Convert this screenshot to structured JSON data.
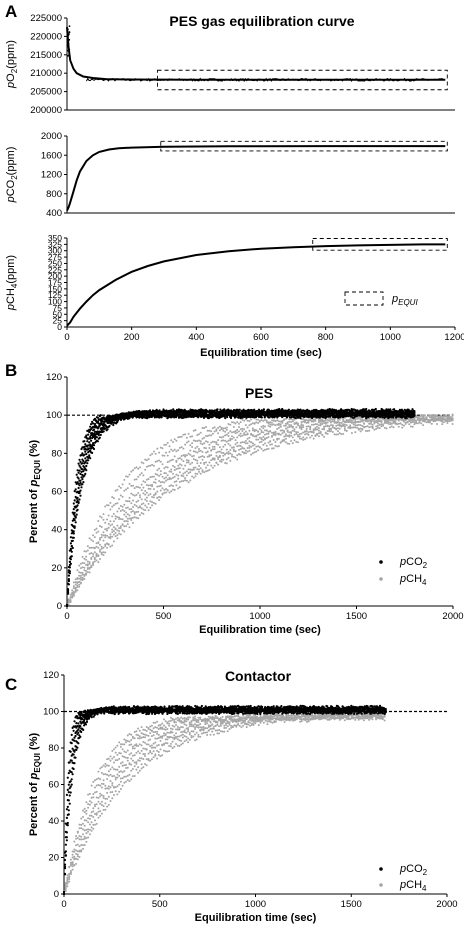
{
  "chart_data": [
    {
      "panel": "A",
      "title": "PES gas equilibration curve",
      "type": "line",
      "xlabel": "Equilibration time (sec)",
      "xlim": [
        0,
        1200
      ],
      "xticks": [
        "0",
        "200",
        "400",
        "600",
        "800",
        "1000",
        "1200"
      ],
      "legend": "p_EQUI",
      "legend_label": "p",
      "legend_sub": "EQUI",
      "subplots": [
        {
          "ylabel_pre": "pO",
          "ylabel_sub": "2",
          "ylabel_post": "(ppm)",
          "ylim": [
            200000,
            225000
          ],
          "yticks": [
            "200000",
            "205000",
            "210000",
            "215000",
            "220000",
            "225000"
          ],
          "series": [
            {
              "x": [
                0,
                5,
                10,
                20,
                30,
                50,
                80,
                120,
                200,
                400,
                600,
                800,
                1000,
                1170
              ],
              "y": [
                222500,
                217000,
                213500,
                211200,
                210000,
                209100,
                208700,
                208400,
                208300,
                208200,
                208200,
                208200,
                208200,
                208200
              ]
            }
          ],
          "equi_box": {
            "x": [
              280,
              1170
            ],
            "y": [
              205500,
              210800
            ]
          }
        },
        {
          "ylabel_pre": "pCO",
          "ylabel_sub": "2",
          "ylabel_post": "(ppm)",
          "ylim": [
            400,
            2000
          ],
          "yticks": [
            "400",
            "800",
            "1200",
            "1600",
            "2000"
          ],
          "series": [
            {
              "x": [
                0,
                5,
                10,
                20,
                30,
                40,
                60,
                80,
                100,
                130,
                160,
                200,
                300,
                500,
                800,
                1000,
                1170
              ],
              "y": [
                450,
                520,
                620,
                850,
                1080,
                1260,
                1480,
                1600,
                1670,
                1720,
                1745,
                1760,
                1775,
                1785,
                1790,
                1790,
                1790
              ]
            }
          ],
          "equi_box": {
            "x": [
              290,
              1170
            ],
            "y": [
              1690,
              1890
            ]
          }
        },
        {
          "ylabel_pre": "pCH",
          "ylabel_sub": "4",
          "ylabel_post": "(ppm)",
          "ylim": [
            0,
            350
          ],
          "yticks": [
            "0",
            "25",
            "50",
            "75",
            "100",
            "125",
            "150",
            "175",
            "200",
            "225",
            "250",
            "275",
            "300",
            "325",
            "350"
          ],
          "series": [
            {
              "x": [
                0,
                10,
                20,
                40,
                60,
                80,
                100,
                150,
                200,
                250,
                300,
                400,
                500,
                600,
                700,
                800,
                900,
                1000,
                1100,
                1170
              ],
              "y": [
                5,
                18,
                40,
                72,
                100,
                125,
                145,
                185,
                217,
                240,
                258,
                283,
                298,
                308,
                314,
                318,
                321,
                323,
                325,
                325
              ]
            }
          ],
          "equi_box": {
            "x": [
              760,
              1170
            ],
            "y": [
              302,
              348
            ]
          }
        }
      ]
    },
    {
      "panel": "B",
      "title": "PES",
      "type": "scatter",
      "xlabel": "Equilibration time (sec)",
      "ylabel_pre": "Percent of ",
      "ylabel_p": "p",
      "ylabel_sub": "EQUI",
      "ylabel_post": " (%)",
      "xlim": [
        0,
        2000
      ],
      "ylim": [
        0,
        120
      ],
      "xticks": [
        "0",
        "500",
        "1000",
        "1500",
        "2000"
      ],
      "yticks": [
        "0",
        "20",
        "40",
        "60",
        "80",
        "100",
        "120"
      ],
      "reference_line": 100,
      "legend_position": "bottom-right",
      "series": [
        {
          "legend_label": "pCO",
          "legend_sub": "2",
          "color": "#000000",
          "tau": [
            45,
            50,
            55,
            60,
            65,
            70,
            75,
            80
          ],
          "x_end": 1800,
          "plateau": 101
        },
        {
          "legend_label": "pCH",
          "legend_sub": "4",
          "color": "#a6a6a6",
          "tau": [
            280,
            330,
            380,
            420,
            460,
            500,
            540,
            580
          ],
          "x_end": 2000,
          "plateau": 100
        }
      ]
    },
    {
      "panel": "C",
      "title": "Contactor",
      "type": "scatter",
      "xlabel": "Equilibration time (sec)",
      "ylabel_pre": "Percent of ",
      "ylabel_p": "p",
      "ylabel_sub": "EQUI",
      "ylabel_post": " (%)",
      "xlim": [
        0,
        2000
      ],
      "ylim": [
        0,
        120
      ],
      "xticks": [
        "0",
        "500",
        "1000",
        "1500",
        "2000"
      ],
      "yticks": [
        "0",
        "20",
        "40",
        "60",
        "80",
        "100",
        "120"
      ],
      "reference_line": 100,
      "legend_position": "bottom-right",
      "series": [
        {
          "legend_label": "pCO",
          "legend_sub": "2",
          "color": "#000000",
          "tau": [
            20,
            24,
            28,
            32,
            36,
            40,
            44
          ],
          "x_end": 1680,
          "plateau": 101
        },
        {
          "legend_label": "pCH",
          "legend_sub": "4",
          "color": "#a6a6a6",
          "tau": [
            160,
            180,
            200,
            225,
            250,
            275,
            300,
            330
          ],
          "x_end": 1680,
          "plateau": 98
        }
      ]
    }
  ]
}
